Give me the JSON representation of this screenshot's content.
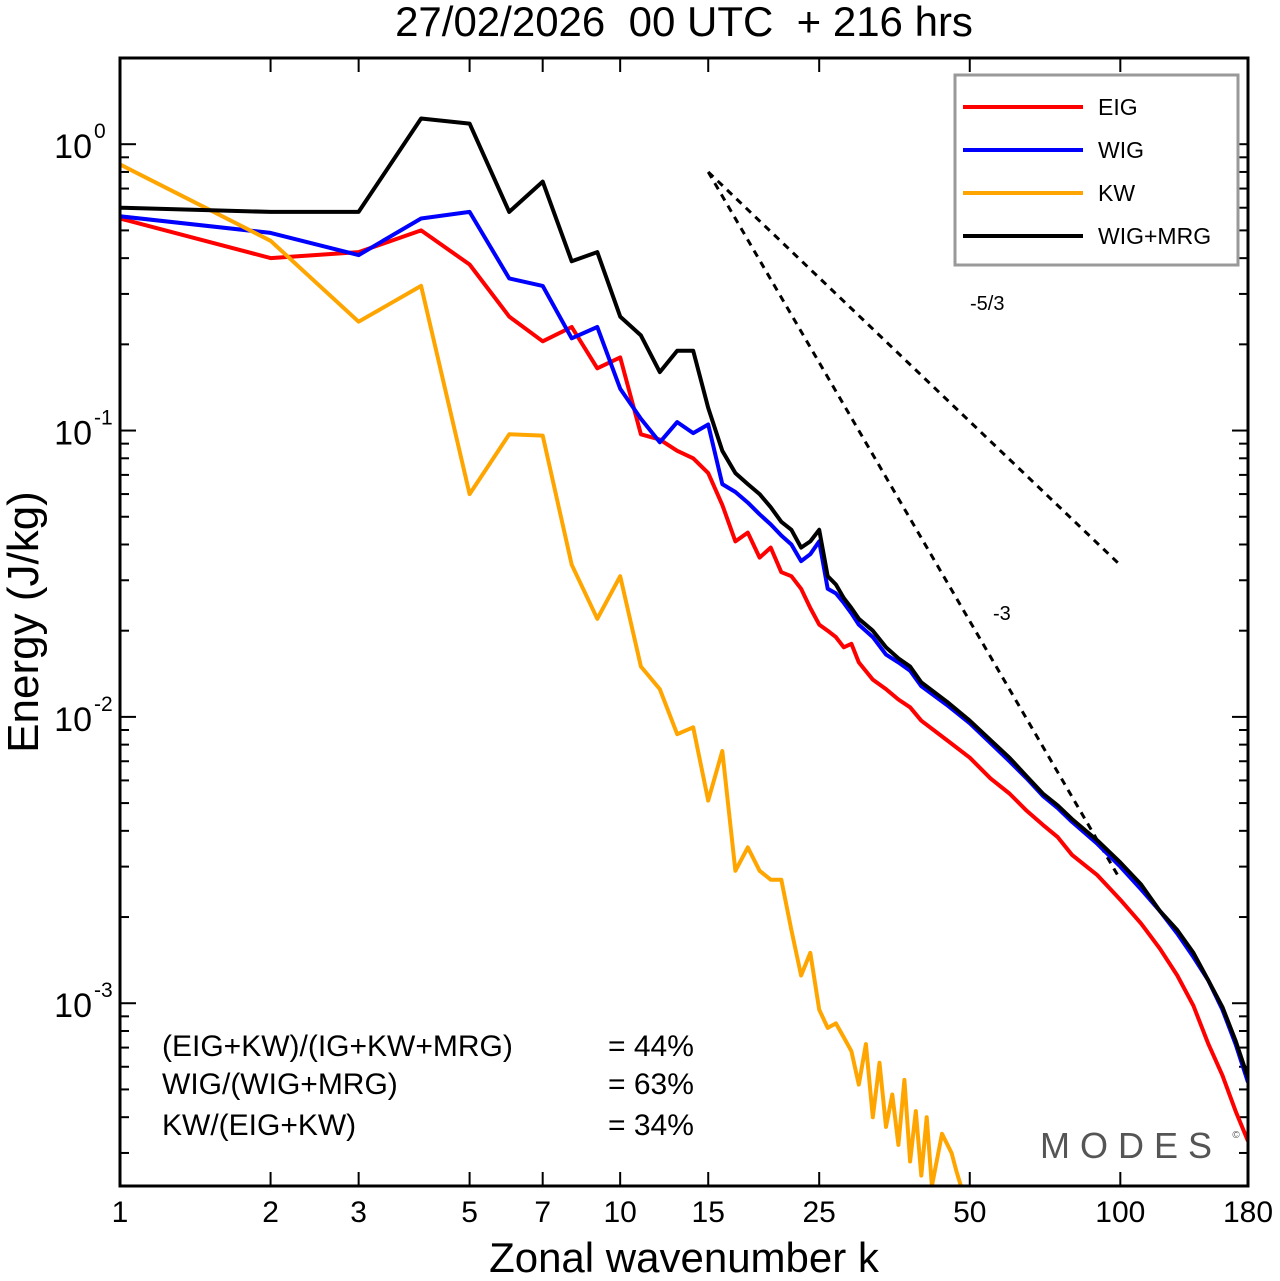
{
  "chart_data": {
    "type": "line",
    "title": "27/02/2026  00 UTC  + 216 hrs",
    "xlabel": "Zonal wavenumber k",
    "ylabel": "Energy (J/kg)",
    "xscale": "log",
    "yscale": "log",
    "xlim": [
      1,
      180
    ],
    "ylim": [
      0.00023,
      2.0
    ],
    "x_ticks": [
      1,
      2,
      3,
      5,
      7,
      10,
      15,
      25,
      50,
      100,
      180
    ],
    "x_tick_labels": [
      "1",
      "2",
      "3",
      "5",
      "7",
      "10",
      "15",
      "25",
      "50",
      "100",
      "180"
    ],
    "y_ticks": [
      {
        "value": 1,
        "base": "10",
        "exp": "0"
      },
      {
        "value": 0.1,
        "base": "10",
        "exp": "-1"
      },
      {
        "value": 0.01,
        "base": "10",
        "exp": "-2"
      },
      {
        "value": 0.001,
        "base": "10",
        "exp": "-3"
      }
    ],
    "legend_position": "top-right",
    "series": [
      {
        "name": "EIG",
        "color": "#ff0000",
        "points": [
          [
            1,
            0.55
          ],
          [
            2,
            0.4
          ],
          [
            3,
            0.42
          ],
          [
            4,
            0.5
          ],
          [
            5,
            0.38
          ],
          [
            6,
            0.25
          ],
          [
            7,
            0.205
          ],
          [
            8,
            0.23
          ],
          [
            9,
            0.165
          ],
          [
            10,
            0.18
          ],
          [
            11,
            0.097
          ],
          [
            12,
            0.093
          ],
          [
            13,
            0.085
          ],
          [
            14,
            0.08
          ],
          [
            15,
            0.071
          ],
          [
            16,
            0.055
          ],
          [
            17,
            0.041
          ],
          [
            18,
            0.044
          ],
          [
            19,
            0.036
          ],
          [
            20,
            0.039
          ],
          [
            21,
            0.032
          ],
          [
            22,
            0.031
          ],
          [
            23,
            0.028
          ],
          [
            24,
            0.024
          ],
          [
            25,
            0.021
          ],
          [
            26,
            0.02
          ],
          [
            27,
            0.019
          ],
          [
            28,
            0.0175
          ],
          [
            29,
            0.018
          ],
          [
            30,
            0.0155
          ],
          [
            32,
            0.0135
          ],
          [
            34,
            0.0125
          ],
          [
            36,
            0.0115
          ],
          [
            38,
            0.0108
          ],
          [
            40,
            0.0097
          ],
          [
            45,
            0.0083
          ],
          [
            50,
            0.0072
          ],
          [
            55,
            0.0061
          ],
          [
            60,
            0.0054
          ],
          [
            65,
            0.0047
          ],
          [
            70,
            0.0042
          ],
          [
            75,
            0.0038
          ],
          [
            80,
            0.0033
          ],
          [
            90,
            0.0028
          ],
          [
            100,
            0.0023
          ],
          [
            110,
            0.0019
          ],
          [
            120,
            0.00155
          ],
          [
            130,
            0.00125
          ],
          [
            140,
            0.00098
          ],
          [
            150,
            0.00072
          ],
          [
            160,
            0.00056
          ],
          [
            170,
            0.00042
          ],
          [
            180,
            0.00033
          ]
        ]
      },
      {
        "name": "WIG",
        "color": "#0000ff",
        "points": [
          [
            1,
            0.56
          ],
          [
            2,
            0.49
          ],
          [
            3,
            0.41
          ],
          [
            4,
            0.55
          ],
          [
            5,
            0.58
          ],
          [
            6,
            0.34
          ],
          [
            7,
            0.32
          ],
          [
            8,
            0.21
          ],
          [
            9,
            0.23
          ],
          [
            10,
            0.14
          ],
          [
            11,
            0.11
          ],
          [
            12,
            0.091
          ],
          [
            13,
            0.107
          ],
          [
            14,
            0.098
          ],
          [
            15,
            0.105
          ],
          [
            16,
            0.065
          ],
          [
            17,
            0.061
          ],
          [
            18,
            0.056
          ],
          [
            19,
            0.051
          ],
          [
            20,
            0.047
          ],
          [
            21,
            0.043
          ],
          [
            22,
            0.04
          ],
          [
            23,
            0.035
          ],
          [
            24,
            0.037
          ],
          [
            25,
            0.041
          ],
          [
            26,
            0.028
          ],
          [
            27,
            0.027
          ],
          [
            28,
            0.025
          ],
          [
            29,
            0.023
          ],
          [
            30,
            0.021
          ],
          [
            32,
            0.019
          ],
          [
            34,
            0.0165
          ],
          [
            36,
            0.0155
          ],
          [
            38,
            0.0145
          ],
          [
            40,
            0.0128
          ],
          [
            45,
            0.011
          ],
          [
            50,
            0.0095
          ],
          [
            55,
            0.0081
          ],
          [
            60,
            0.007
          ],
          [
            65,
            0.0061
          ],
          [
            70,
            0.0053
          ],
          [
            75,
            0.0048
          ],
          [
            80,
            0.0043
          ],
          [
            90,
            0.0036
          ],
          [
            100,
            0.003
          ],
          [
            110,
            0.0025
          ],
          [
            120,
            0.0021
          ],
          [
            130,
            0.00175
          ],
          [
            140,
            0.00145
          ],
          [
            150,
            0.0012
          ],
          [
            160,
            0.00095
          ],
          [
            170,
            0.00072
          ],
          [
            180,
            0.00053
          ]
        ]
      },
      {
        "name": "KW",
        "color": "#ffa500",
        "points": [
          [
            1,
            0.85
          ],
          [
            2,
            0.46
          ],
          [
            3,
            0.24
          ],
          [
            4,
            0.32
          ],
          [
            5,
            0.06
          ],
          [
            6,
            0.097
          ],
          [
            7,
            0.096
          ],
          [
            8,
            0.034
          ],
          [
            9,
            0.022
          ],
          [
            10,
            0.031
          ],
          [
            11,
            0.015
          ],
          [
            12,
            0.0125
          ],
          [
            13,
            0.0087
          ],
          [
            14,
            0.0092
          ],
          [
            15,
            0.0051
          ],
          [
            16,
            0.0076
          ],
          [
            17,
            0.0029
          ],
          [
            18,
            0.0035
          ],
          [
            19,
            0.0029
          ],
          [
            20,
            0.0027
          ],
          [
            21,
            0.0027
          ],
          [
            22,
            0.0018
          ],
          [
            23,
            0.00125
          ],
          [
            24,
            0.0015
          ],
          [
            25,
            0.00095
          ],
          [
            26,
            0.00082
          ],
          [
            27,
            0.00085
          ],
          [
            28,
            0.00076
          ],
          [
            29,
            0.00068
          ],
          [
            30,
            0.00052
          ],
          [
            31,
            0.00072
          ],
          [
            32,
            0.0004
          ],
          [
            33,
            0.00062
          ],
          [
            34,
            0.00037
          ],
          [
            35,
            0.00048
          ],
          [
            36,
            0.00032
          ],
          [
            37,
            0.00054
          ],
          [
            38,
            0.00028
          ],
          [
            39,
            0.00042
          ],
          [
            40,
            0.00025
          ],
          [
            41,
            0.0004
          ],
          [
            42,
            0.00023
          ],
          [
            44,
            0.00035
          ],
          [
            46,
            0.0003
          ],
          [
            47,
            0.00026
          ],
          [
            48,
            0.00023
          ]
        ]
      },
      {
        "name": "WIG+MRG",
        "color": "#000000",
        "points": [
          [
            1,
            0.6
          ],
          [
            2,
            0.58
          ],
          [
            3,
            0.58
          ],
          [
            4,
            1.23
          ],
          [
            5,
            1.18
          ],
          [
            6,
            0.58
          ],
          [
            7,
            0.74
          ],
          [
            8,
            0.39
          ],
          [
            9,
            0.42
          ],
          [
            10,
            0.25
          ],
          [
            11,
            0.215
          ],
          [
            12,
            0.16
          ],
          [
            13,
            0.19
          ],
          [
            14,
            0.19
          ],
          [
            15,
            0.12
          ],
          [
            16,
            0.085
          ],
          [
            17,
            0.071
          ],
          [
            18,
            0.065
          ],
          [
            19,
            0.06
          ],
          [
            20,
            0.054
          ],
          [
            21,
            0.048
          ],
          [
            22,
            0.045
          ],
          [
            23,
            0.039
          ],
          [
            24,
            0.041
          ],
          [
            25,
            0.045
          ],
          [
            26,
            0.031
          ],
          [
            27,
            0.029
          ],
          [
            28,
            0.026
          ],
          [
            29,
            0.024
          ],
          [
            30,
            0.022
          ],
          [
            32,
            0.02
          ],
          [
            34,
            0.0175
          ],
          [
            36,
            0.016
          ],
          [
            38,
            0.015
          ],
          [
            40,
            0.0132
          ],
          [
            45,
            0.0113
          ],
          [
            50,
            0.0097
          ],
          [
            55,
            0.0083
          ],
          [
            60,
            0.0072
          ],
          [
            65,
            0.0062
          ],
          [
            70,
            0.0054
          ],
          [
            75,
            0.0049
          ],
          [
            80,
            0.0044
          ],
          [
            90,
            0.0037
          ],
          [
            100,
            0.0031
          ],
          [
            110,
            0.0026
          ],
          [
            120,
            0.0021
          ],
          [
            130,
            0.0018
          ],
          [
            140,
            0.0015
          ],
          [
            150,
            0.0012
          ],
          [
            160,
            0.00097
          ],
          [
            170,
            0.00074
          ],
          [
            180,
            0.00055
          ]
        ]
      }
    ],
    "reference_lines": [
      {
        "label": "-5/3",
        "slope": -1.6667,
        "x": [
          15,
          100
        ],
        "y0": 0.8
      },
      {
        "label": "-3",
        "slope": -3,
        "x": [
          15,
          100
        ],
        "y0": 0.8
      }
    ],
    "annotations": [
      {
        "label": "(EIG+KW)/(IG+KW+MRG)",
        "value": "= 44%"
      },
      {
        "label": "WIG/(WIG+MRG)",
        "value": "= 63%"
      },
      {
        "label": "KW/(EIG+KW)",
        "value": "= 34%"
      }
    ],
    "watermark": "MODES",
    "watermark_mark": "©"
  }
}
